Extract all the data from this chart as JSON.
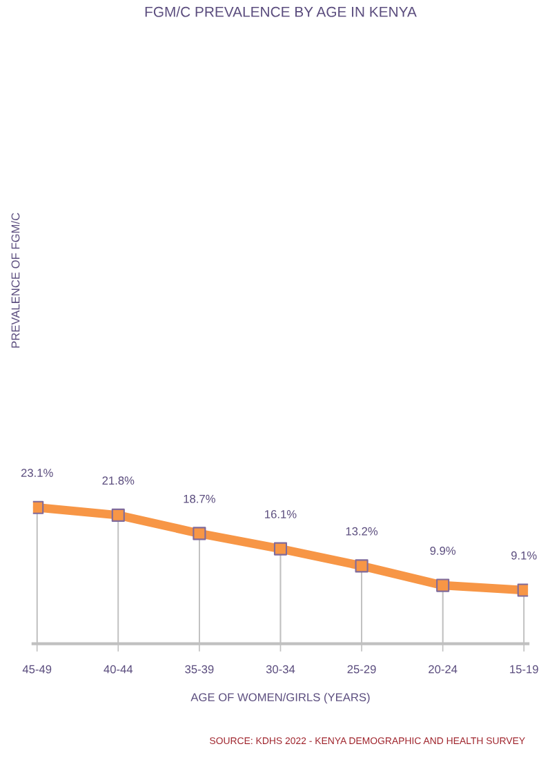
{
  "chart_data": {
    "type": "line",
    "title": "FGM/C PREVALENCE BY AGE IN KENYA",
    "xlabel": "AGE OF WOMEN/GIRLS (YEARS)",
    "categories": [
      "45-49",
      "40-44",
      "35-39",
      "30-34",
      "25-29",
      "20-24",
      "15-19"
    ],
    "series": [
      {
        "type": "lollipop",
        "color": "#f79646",
        "values": [
          23.1,
          21.8,
          18.7,
          16.1,
          13.2,
          9.9,
          9.1
        ]
      },
      {
        "marker": "none",
        "color": "#f79646",
        "values": [
          23.1,
          21.8,
          18.7,
          16.1,
          13.2,
          9.9,
          9.1
        ],
        "value_labels": [
          "23.1%",
          "21.8%",
          "18.7%",
          "16.1%",
          "13.2%",
          "9.9%",
          "9.1%"
        ]
      }
    ],
    "tick_labels": "x",
    "grid": "x",
    "marker": "square",
    "legend": false,
    "annotations": [
      "PREVALENCE OF FGM/C",
      "SOURCE: KDHS 2022 - KENYA DEMOGRAPHIC AND HEALTH SURVEY"
    ]
  }
}
